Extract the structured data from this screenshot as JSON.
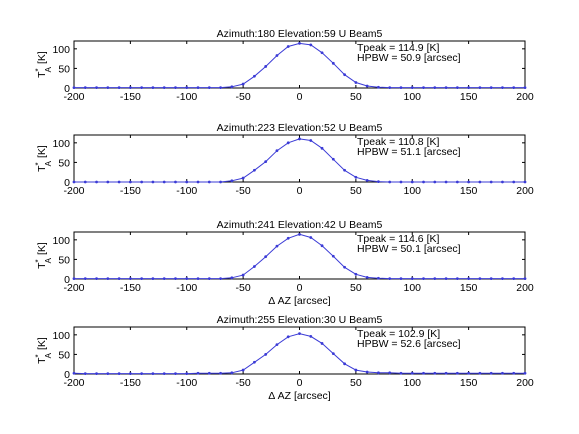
{
  "chart_data": [
    {
      "type": "line",
      "title": "Azimuth:180 Elevation:59 U Beam5",
      "xlabel": "",
      "ylabel": "T",
      "ylabel_sup": "*",
      "ylabel_sub": "A",
      "ylabel_unit": "[K]",
      "xlim": [
        -200,
        200
      ],
      "ylim": [
        0,
        120
      ],
      "xticks": [
        "-200",
        "-150",
        "-100",
        "-50",
        "0",
        "50",
        "100",
        "150",
        "200"
      ],
      "yticks": [
        "0",
        "50",
        "100"
      ],
      "annotation": [
        "Tpeak = 114.9 [K]",
        "HPBW = 50.9 [arcsec]"
      ],
      "series": [
        {
          "color": "#3b3bd6",
          "x": [
            -200,
            -190,
            -180,
            -170,
            -160,
            -150,
            -140,
            -130,
            -120,
            -110,
            -100,
            -90,
            -80,
            -70,
            -60,
            -50,
            -40,
            -30,
            -20,
            -10,
            0,
            10,
            20,
            30,
            40,
            50,
            60,
            70,
            80,
            90,
            100,
            110,
            120,
            130,
            140,
            150,
            160,
            170,
            180,
            190,
            200
          ],
          "y": [
            1,
            1,
            1,
            1,
            1,
            1,
            1,
            1,
            1,
            1,
            1,
            1,
            1,
            1,
            3,
            10,
            30,
            55,
            83,
            106,
            114,
            110,
            90,
            63,
            34,
            14,
            5,
            2,
            1,
            1,
            1,
            1,
            1,
            1,
            1,
            1,
            1,
            1,
            1,
            1,
            1
          ]
        }
      ]
    },
    {
      "type": "line",
      "title": "Azimuth:223 Elevation:52 U Beam5",
      "xlabel": "",
      "ylabel": "T",
      "ylabel_sup": "*",
      "ylabel_sub": "A",
      "ylabel_unit": "[K]",
      "xlim": [
        -200,
        200
      ],
      "ylim": [
        0,
        120
      ],
      "xticks": [
        "-200",
        "-150",
        "-100",
        "-50",
        "0",
        "50",
        "100",
        "150",
        "200"
      ],
      "yticks": [
        "0",
        "50",
        "100"
      ],
      "annotation": [
        "Tpeak = 110.8 [K]",
        "HPBW = 51.1 [arcsec]"
      ],
      "series": [
        {
          "color": "#3b3bd6",
          "x": [
            -200,
            -190,
            -180,
            -170,
            -160,
            -150,
            -140,
            -130,
            -120,
            -110,
            -100,
            -90,
            -80,
            -70,
            -60,
            -50,
            -40,
            -30,
            -20,
            -10,
            0,
            10,
            20,
            30,
            40,
            50,
            60,
            70,
            80,
            90,
            100,
            110,
            120,
            130,
            140,
            150,
            160,
            170,
            180,
            190,
            200
          ],
          "y": [
            0,
            0,
            0,
            0,
            0,
            0,
            0,
            0,
            0,
            0,
            0,
            0,
            0,
            0,
            3,
            10,
            30,
            52,
            80,
            100,
            110,
            106,
            86,
            58,
            30,
            12,
            4,
            1,
            0,
            0,
            0,
            0,
            0,
            0,
            0,
            0,
            0,
            0,
            0,
            0,
            0
          ]
        }
      ]
    },
    {
      "type": "line",
      "title": "Azimuth:241 Elevation:42 U Beam5",
      "xlabel": "Δ AZ  [arcsec]",
      "ylabel": "T",
      "ylabel_sup": "*",
      "ylabel_sub": "A",
      "ylabel_unit": "[K]",
      "xlim": [
        -200,
        200
      ],
      "ylim": [
        0,
        120
      ],
      "xticks": [
        "-200",
        "-150",
        "-100",
        "-50",
        "0",
        "50",
        "100",
        "150",
        "200"
      ],
      "yticks": [
        "0",
        "50",
        "100"
      ],
      "annotation": [
        "Tpeak = 114.6 [K]",
        "HPBW = 50.1 [arcsec]"
      ],
      "series": [
        {
          "color": "#3b3bd6",
          "x": [
            -200,
            -190,
            -180,
            -170,
            -160,
            -150,
            -140,
            -130,
            -120,
            -110,
            -100,
            -90,
            -80,
            -70,
            -60,
            -50,
            -40,
            -30,
            -20,
            -10,
            0,
            10,
            20,
            30,
            40,
            50,
            60,
            70,
            80,
            90,
            100,
            110,
            120,
            130,
            140,
            150,
            160,
            170,
            180,
            190,
            200
          ],
          "y": [
            1,
            1,
            1,
            1,
            1,
            1,
            1,
            1,
            1,
            1,
            1,
            1,
            1,
            1,
            3,
            10,
            32,
            57,
            84,
            104,
            114,
            106,
            85,
            58,
            30,
            12,
            4,
            2,
            1,
            1,
            1,
            1,
            1,
            1,
            1,
            1,
            1,
            1,
            1,
            1,
            1
          ]
        }
      ]
    },
    {
      "type": "line",
      "title": "Azimuth:255 Elevation:30 U Beam5",
      "xlabel": "Δ AZ  [arcsec]",
      "ylabel": "T",
      "ylabel_sup": "*",
      "ylabel_sub": "A",
      "ylabel_unit": "[K]",
      "xlim": [
        -200,
        200
      ],
      "ylim": [
        0,
        120
      ],
      "xticks": [
        "-200",
        "-150",
        "-100",
        "-50",
        "0",
        "50",
        "100",
        "150",
        "200"
      ],
      "yticks": [
        "0",
        "50",
        "100"
      ],
      "annotation": [
        "Tpeak = 102.9 [K]",
        "HPBW = 52.6 [arcsec]"
      ],
      "series": [
        {
          "color": "#3b3bd6",
          "x": [
            -200,
            -190,
            -180,
            -170,
            -160,
            -150,
            -140,
            -130,
            -120,
            -110,
            -100,
            -90,
            -80,
            -70,
            -60,
            -50,
            -40,
            -30,
            -20,
            -10,
            0,
            10,
            20,
            30,
            40,
            50,
            60,
            70,
            80,
            90,
            100,
            110,
            120,
            130,
            140,
            150,
            160,
            170,
            180,
            190,
            200
          ],
          "y": [
            2,
            1,
            1,
            1,
            1,
            1,
            1,
            1,
            1,
            1,
            1,
            2,
            2,
            2,
            3,
            10,
            30,
            50,
            75,
            95,
            103,
            96,
            78,
            52,
            26,
            10,
            5,
            3,
            3,
            2,
            2,
            2,
            2,
            2,
            2,
            2,
            2,
            2,
            2,
            2,
            2
          ]
        }
      ]
    }
  ]
}
